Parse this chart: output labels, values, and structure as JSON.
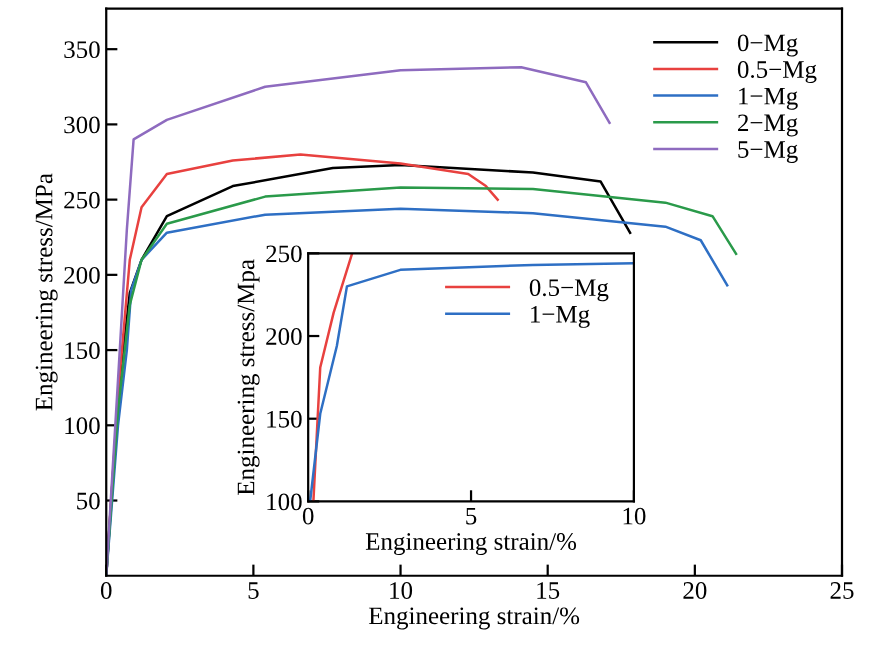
{
  "chart_data": [
    {
      "type": "line",
      "xlabel": "Engineering strain/%",
      "ylabel": "Engineering stress/MPa",
      "xlim": [
        0,
        25
      ],
      "ylim": [
        0,
        377
      ],
      "xticks": [
        0,
        5,
        10,
        15,
        20,
        25
      ],
      "yticks": [
        50,
        100,
        150,
        200,
        250,
        300,
        350
      ],
      "legend": "top right",
      "grid": false,
      "series": [
        {
          "name": "0−Mg",
          "color": "#000000",
          "x": [
            0,
            0.4,
            0.8,
            1.2,
            2.06,
            4.3,
            7.7,
            10,
            14.5,
            16.8,
            17.8
          ],
          "values": [
            0,
            118,
            188,
            210,
            239,
            259,
            271,
            273,
            268,
            262,
            228
          ]
        },
        {
          "name": "0.5−Mg",
          "color": "#e8413f",
          "x": [
            0,
            0.4,
            0.8,
            1.2,
            2.06,
            4.3,
            6.6,
            10,
            12.3,
            12.9,
            13.3
          ],
          "values": [
            0,
            120,
            210,
            245,
            267,
            276,
            280,
            274,
            267,
            259,
            250
          ]
        },
        {
          "name": "1−Mg",
          "color": "#2e6fc4",
          "x": [
            0,
            0.4,
            0.7,
            0.85,
            1.2,
            2.06,
            5.4,
            10,
            14.5,
            19,
            20.2,
            21.1
          ],
          "values": [
            0,
            100,
            150,
            190,
            210,
            228,
            240,
            244,
            241,
            232,
            223,
            193
          ]
        },
        {
          "name": "2−Mg",
          "color": "#2a9a4a",
          "x": [
            0,
            0.4,
            0.8,
            1.2,
            2.06,
            5.4,
            10,
            14.5,
            19,
            20.6,
            21.4
          ],
          "values": [
            0,
            110,
            180,
            210,
            234,
            252,
            258,
            257,
            248,
            239,
            214
          ]
        },
        {
          "name": "5−Mg",
          "color": "#8e6bbf",
          "x": [
            0,
            0.4,
            0.7,
            0.93,
            2.06,
            5.4,
            10,
            14.1,
            16.3,
            17.1
          ],
          "values": [
            0,
            130,
            230,
            290,
            303,
            325,
            336,
            338,
            328,
            301
          ]
        }
      ]
    },
    {
      "type": "line",
      "xlabel": "Engineering strain/%",
      "ylabel": "Engineering stress/Mpa",
      "xlim": [
        0,
        10
      ],
      "ylim": [
        100,
        250
      ],
      "xticks": [
        0,
        5,
        10
      ],
      "yticks": [
        100,
        150,
        200,
        250
      ],
      "legend": "top right",
      "grid": false,
      "series": [
        {
          "name": "0.5−Mg",
          "color": "#e8413f",
          "x": [
            0.16,
            0.37,
            0.78,
            1.35
          ],
          "values": [
            100,
            181,
            214,
            250
          ]
        },
        {
          "name": "1−Mg",
          "color": "#2e6fc4",
          "x": [
            0.06,
            0.37,
            0.88,
            1.19,
            2.83,
            6.9,
            10
          ],
          "values": [
            100,
            153,
            194,
            230,
            240,
            243,
            244
          ]
        }
      ]
    }
  ]
}
